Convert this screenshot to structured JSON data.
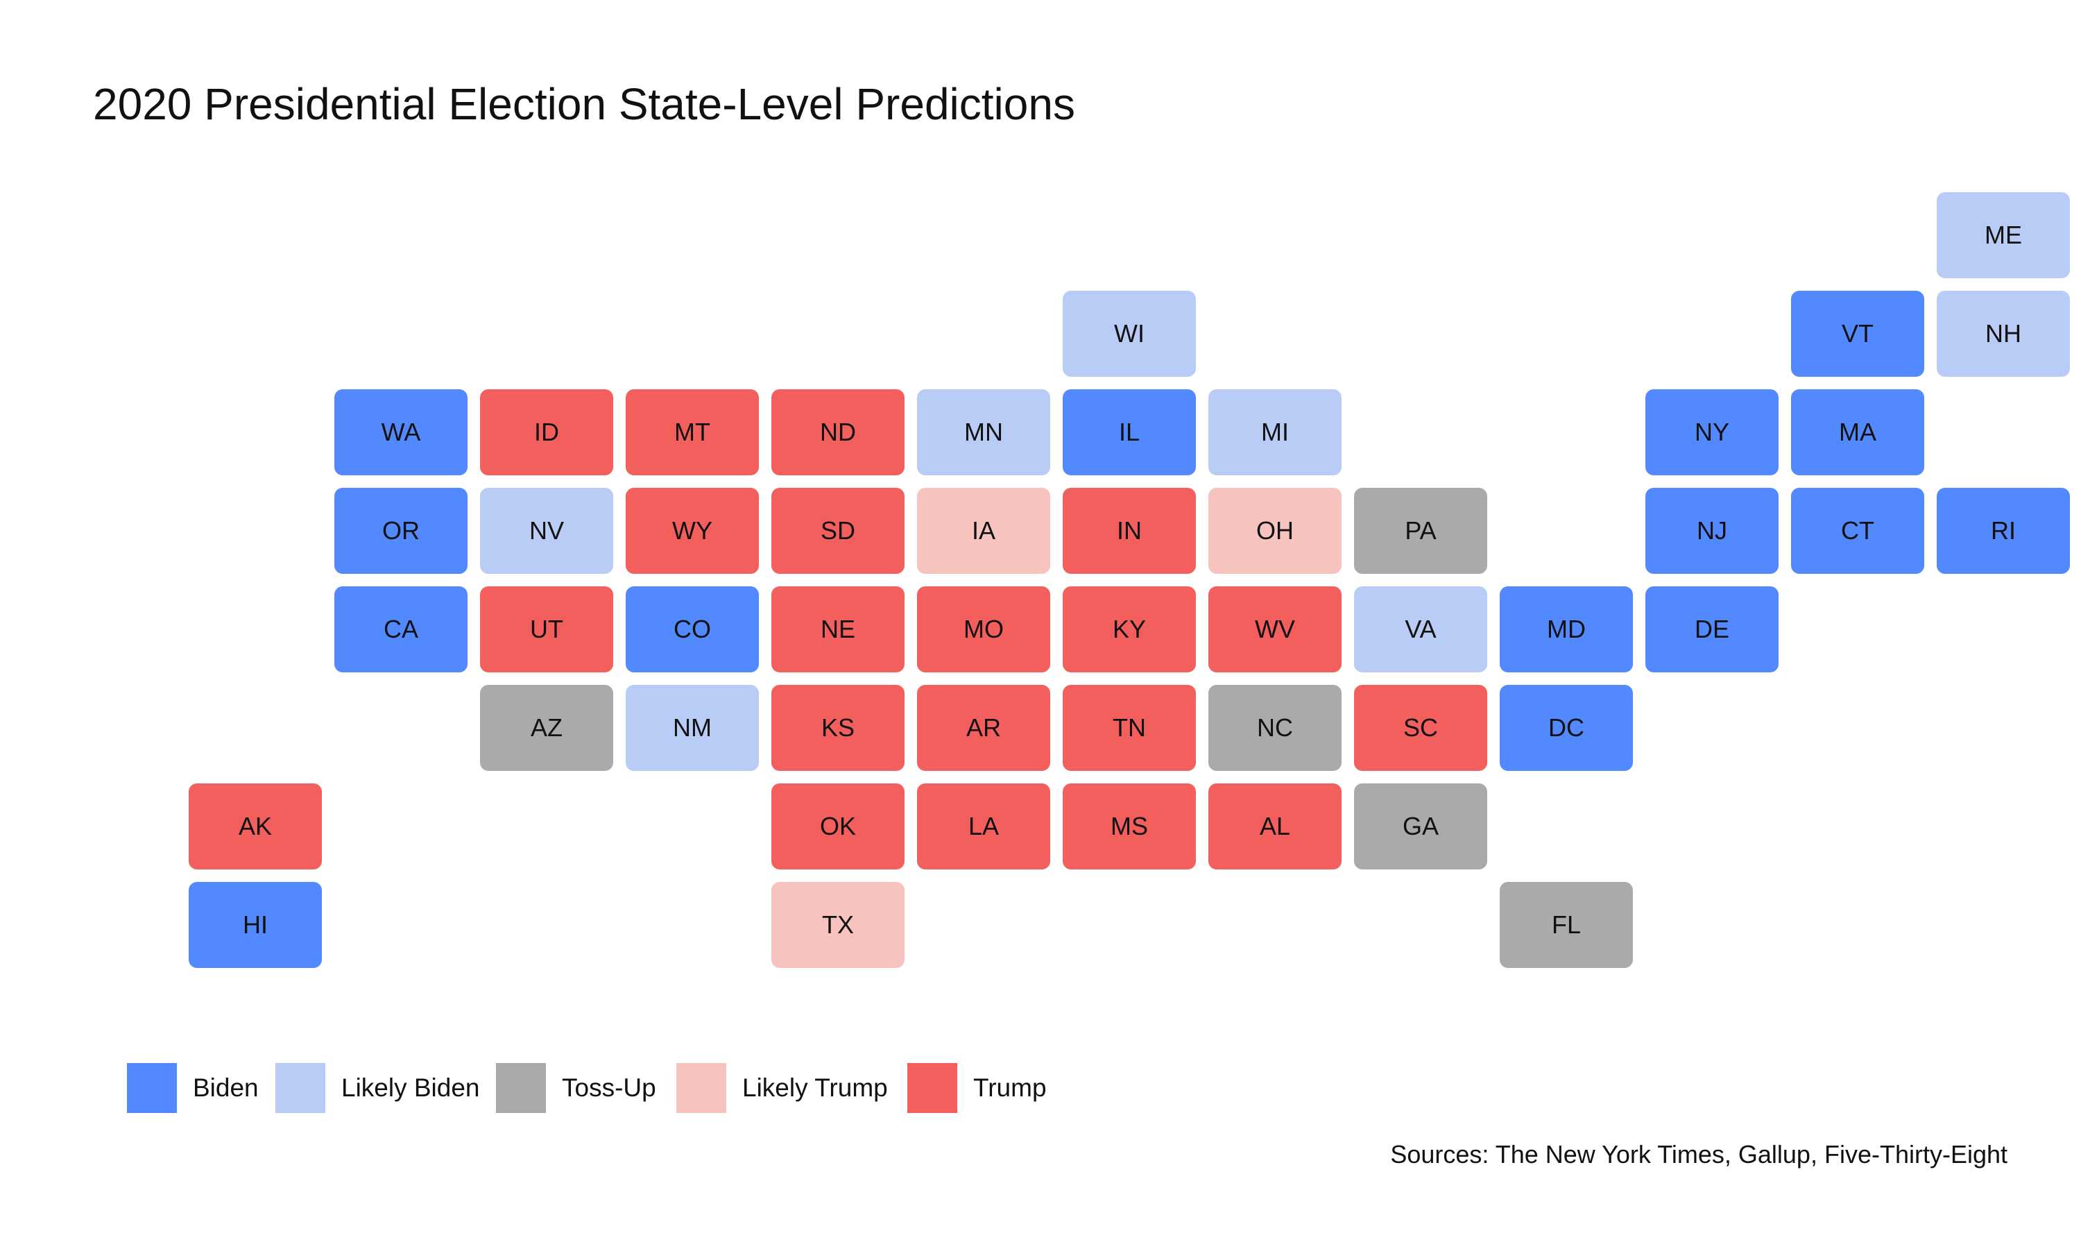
{
  "title": "2020 Presidential Election State-Level Predictions",
  "source": "Sources: The New York Times, Gallup, Five-Thirty-Eight",
  "categories": {
    "biden": {
      "label": "Biden",
      "color": "#5289ff"
    },
    "likely_biden": {
      "label": "Likely Biden",
      "color": "#b9ccf6"
    },
    "tossup": {
      "label": "Toss-Up",
      "color": "#aaaaaa"
    },
    "likely_trump": {
      "label": "Likely Trump",
      "color": "#f6c3bf"
    },
    "trump": {
      "label": "Trump",
      "color": "#f25f5c"
    }
  },
  "legend": [
    "biden",
    "likely_biden",
    "tossup",
    "likely_trump",
    "trump"
  ],
  "states": [
    {
      "abbr": "ME",
      "grid": [
        12,
        0
      ],
      "rating": "likely_biden"
    },
    {
      "abbr": "WI",
      "grid": [
        6,
        1
      ],
      "rating": "likely_biden"
    },
    {
      "abbr": "VT",
      "grid": [
        11,
        1
      ],
      "rating": "biden"
    },
    {
      "abbr": "NH",
      "grid": [
        12,
        1
      ],
      "rating": "likely_biden"
    },
    {
      "abbr": "WA",
      "grid": [
        1,
        2
      ],
      "rating": "biden"
    },
    {
      "abbr": "ID",
      "grid": [
        2,
        2
      ],
      "rating": "trump"
    },
    {
      "abbr": "MT",
      "grid": [
        3,
        2
      ],
      "rating": "trump"
    },
    {
      "abbr": "ND",
      "grid": [
        4,
        2
      ],
      "rating": "trump"
    },
    {
      "abbr": "MN",
      "grid": [
        5,
        2
      ],
      "rating": "likely_biden"
    },
    {
      "abbr": "IL",
      "grid": [
        6,
        2
      ],
      "rating": "biden"
    },
    {
      "abbr": "MI",
      "grid": [
        7,
        2
      ],
      "rating": "likely_biden"
    },
    {
      "abbr": "NY",
      "grid": [
        10,
        2
      ],
      "rating": "biden"
    },
    {
      "abbr": "MA",
      "grid": [
        11,
        2
      ],
      "rating": "biden"
    },
    {
      "abbr": "OR",
      "grid": [
        1,
        3
      ],
      "rating": "biden"
    },
    {
      "abbr": "NV",
      "grid": [
        2,
        3
      ],
      "rating": "likely_biden"
    },
    {
      "abbr": "WY",
      "grid": [
        3,
        3
      ],
      "rating": "trump"
    },
    {
      "abbr": "SD",
      "grid": [
        4,
        3
      ],
      "rating": "trump"
    },
    {
      "abbr": "IA",
      "grid": [
        5,
        3
      ],
      "rating": "likely_trump"
    },
    {
      "abbr": "IN",
      "grid": [
        6,
        3
      ],
      "rating": "trump"
    },
    {
      "abbr": "OH",
      "grid": [
        7,
        3
      ],
      "rating": "likely_trump"
    },
    {
      "abbr": "PA",
      "grid": [
        8,
        3
      ],
      "rating": "tossup"
    },
    {
      "abbr": "NJ",
      "grid": [
        10,
        3
      ],
      "rating": "biden"
    },
    {
      "abbr": "CT",
      "grid": [
        11,
        3
      ],
      "rating": "biden"
    },
    {
      "abbr": "RI",
      "grid": [
        12,
        3
      ],
      "rating": "biden"
    },
    {
      "abbr": "CA",
      "grid": [
        1,
        4
      ],
      "rating": "biden"
    },
    {
      "abbr": "UT",
      "grid": [
        2,
        4
      ],
      "rating": "trump"
    },
    {
      "abbr": "CO",
      "grid": [
        3,
        4
      ],
      "rating": "biden"
    },
    {
      "abbr": "NE",
      "grid": [
        4,
        4
      ],
      "rating": "trump"
    },
    {
      "abbr": "MO",
      "grid": [
        5,
        4
      ],
      "rating": "trump"
    },
    {
      "abbr": "KY",
      "grid": [
        6,
        4
      ],
      "rating": "trump"
    },
    {
      "abbr": "WV",
      "grid": [
        7,
        4
      ],
      "rating": "trump"
    },
    {
      "abbr": "VA",
      "grid": [
        8,
        4
      ],
      "rating": "likely_biden"
    },
    {
      "abbr": "MD",
      "grid": [
        9,
        4
      ],
      "rating": "biden"
    },
    {
      "abbr": "DE",
      "grid": [
        10,
        4
      ],
      "rating": "biden"
    },
    {
      "abbr": "AZ",
      "grid": [
        2,
        5
      ],
      "rating": "tossup"
    },
    {
      "abbr": "NM",
      "grid": [
        3,
        5
      ],
      "rating": "likely_biden"
    },
    {
      "abbr": "KS",
      "grid": [
        4,
        5
      ],
      "rating": "trump"
    },
    {
      "abbr": "AR",
      "grid": [
        5,
        5
      ],
      "rating": "trump"
    },
    {
      "abbr": "TN",
      "grid": [
        6,
        5
      ],
      "rating": "trump"
    },
    {
      "abbr": "NC",
      "grid": [
        7,
        5
      ],
      "rating": "tossup"
    },
    {
      "abbr": "SC",
      "grid": [
        8,
        5
      ],
      "rating": "trump"
    },
    {
      "abbr": "DC",
      "grid": [
        9,
        5
      ],
      "rating": "biden"
    },
    {
      "abbr": "AK",
      "grid": [
        0,
        6
      ],
      "rating": "trump"
    },
    {
      "abbr": "OK",
      "grid": [
        4,
        6
      ],
      "rating": "trump"
    },
    {
      "abbr": "LA",
      "grid": [
        5,
        6
      ],
      "rating": "trump"
    },
    {
      "abbr": "MS",
      "grid": [
        6,
        6
      ],
      "rating": "trump"
    },
    {
      "abbr": "AL",
      "grid": [
        7,
        6
      ],
      "rating": "trump"
    },
    {
      "abbr": "GA",
      "grid": [
        8,
        6
      ],
      "rating": "tossup"
    },
    {
      "abbr": "HI",
      "grid": [
        0,
        7
      ],
      "rating": "biden"
    },
    {
      "abbr": "TX",
      "grid": [
        4,
        7
      ],
      "rating": "likely_trump"
    },
    {
      "abbr": "FL",
      "grid": [
        9,
        7
      ],
      "rating": "tossup"
    }
  ]
}
